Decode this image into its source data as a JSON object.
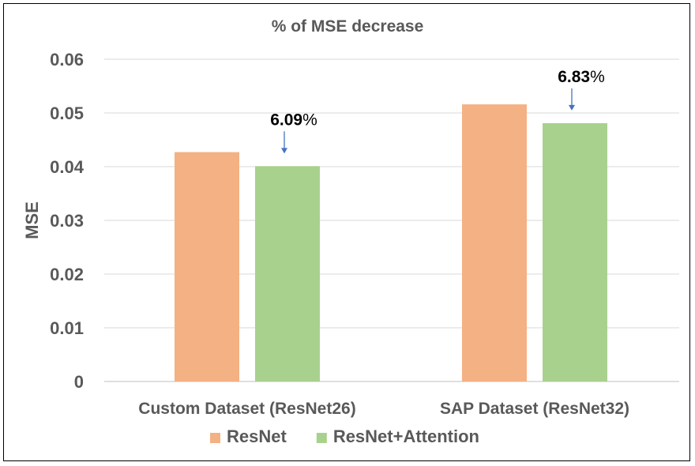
{
  "chart_data": {
    "type": "bar",
    "title": "% of MSE decrease",
    "xlabel": "",
    "ylabel": "MSE",
    "ylim": [
      0,
      0.06
    ],
    "yticks": [
      0,
      0.01,
      0.02,
      0.03,
      0.04,
      0.05,
      0.06
    ],
    "ytick_labels": [
      "0",
      "0.01",
      "0.02",
      "0.03",
      "0.04",
      "0.05",
      "0.06"
    ],
    "grid": true,
    "legend_position": "bottom",
    "categories": [
      "Custom Dataset (ResNet26)",
      "SAP Dataset (ResNet32)"
    ],
    "series": [
      {
        "name": "ResNet",
        "color": "#F4B183",
        "values": [
          0.0427,
          0.0516
        ]
      },
      {
        "name": "ResNet+Attention",
        "color": "#A9D18E",
        "values": [
          0.0401,
          0.0481
        ]
      }
    ],
    "annotations": [
      {
        "category_index": 0,
        "series_index": 1,
        "value": "6.09",
        "suffix": "%"
      },
      {
        "category_index": 1,
        "series_index": 1,
        "value": "6.83",
        "suffix": "%"
      }
    ],
    "arrow_color": "#4472C4"
  }
}
